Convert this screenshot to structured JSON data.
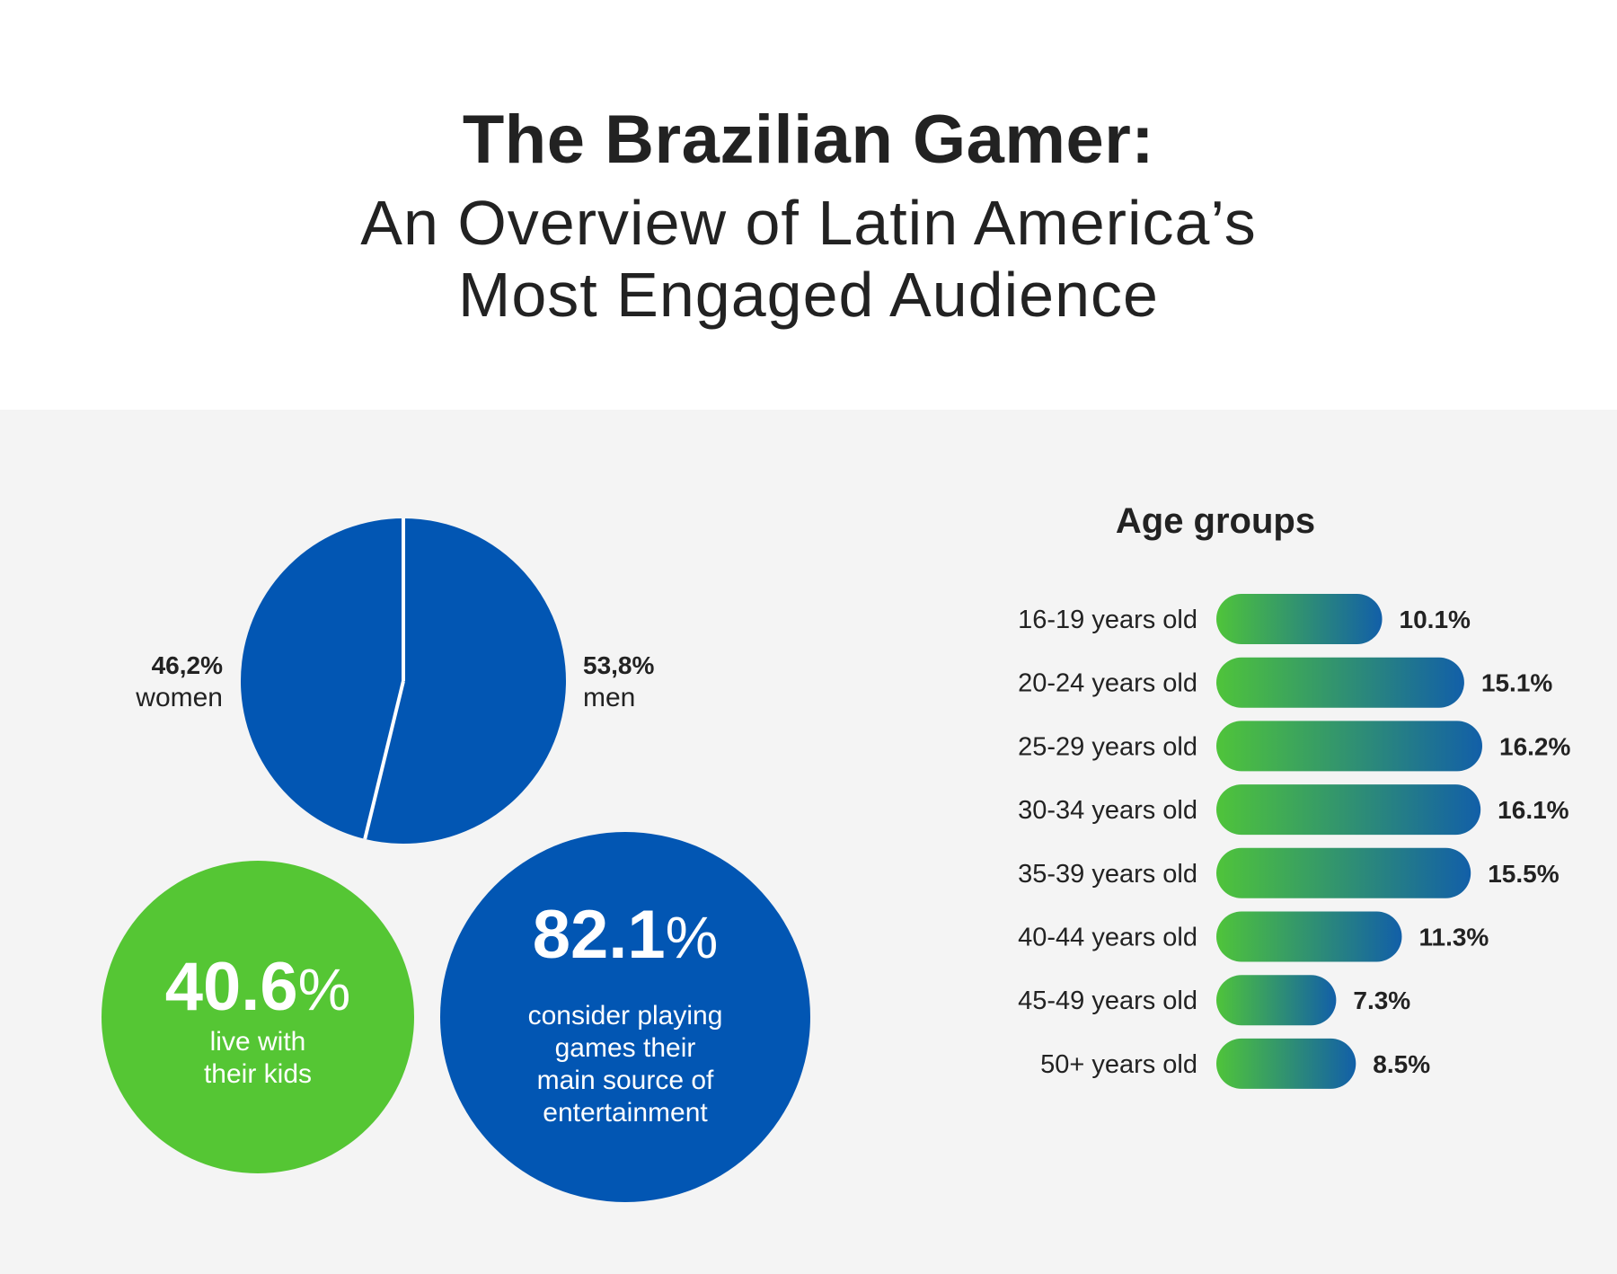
{
  "header": {
    "title": "The Brazilian Gamer:",
    "subtitle_line1": "An Overview of Latin America’s",
    "subtitle_line2": "Most Engaged Audience"
  },
  "colors": {
    "blue": "#0256b3",
    "green": "#55c634",
    "panel_bg": "#f4f4f4",
    "text": "#222222",
    "bar_gradient_start": "#4fc43a",
    "bar_gradient_end": "#125fa8"
  },
  "chart_data": [
    {
      "type": "pie",
      "slices": [
        {
          "value": 46.2,
          "value_label": "46,2%",
          "label": "women",
          "color": "#0256b3"
        },
        {
          "value": 53.8,
          "value_label": "53,8%",
          "label": "men",
          "color": "#0256b3"
        }
      ]
    },
    {
      "type": "bar",
      "orientation": "horizontal",
      "title": "Age groups",
      "categories": [
        "16-19 years old",
        "20-24 years old",
        "25-29 years old",
        "30-34 years old",
        "35-39 years old",
        "40-44 years old",
        "45-49 years old",
        "50+ years old"
      ],
      "values": [
        10.1,
        15.1,
        16.2,
        16.1,
        15.5,
        11.3,
        7.3,
        8.5
      ],
      "value_labels": [
        "10.1%",
        "15.1%",
        "16.2%",
        "16.1%",
        "15.5%",
        "11.3%",
        "7.3%",
        "8.5%"
      ]
    }
  ],
  "stats": [
    {
      "number": "40.6",
      "unit": "%",
      "value": 40.6,
      "lines": [
        "live with",
        "their kids"
      ],
      "color": "#55c634"
    },
    {
      "number": "82.1",
      "unit": "%",
      "value": 82.1,
      "lines": [
        "consider playing",
        "games their",
        "main source of",
        "entertainment"
      ],
      "color": "#0256b3"
    }
  ]
}
